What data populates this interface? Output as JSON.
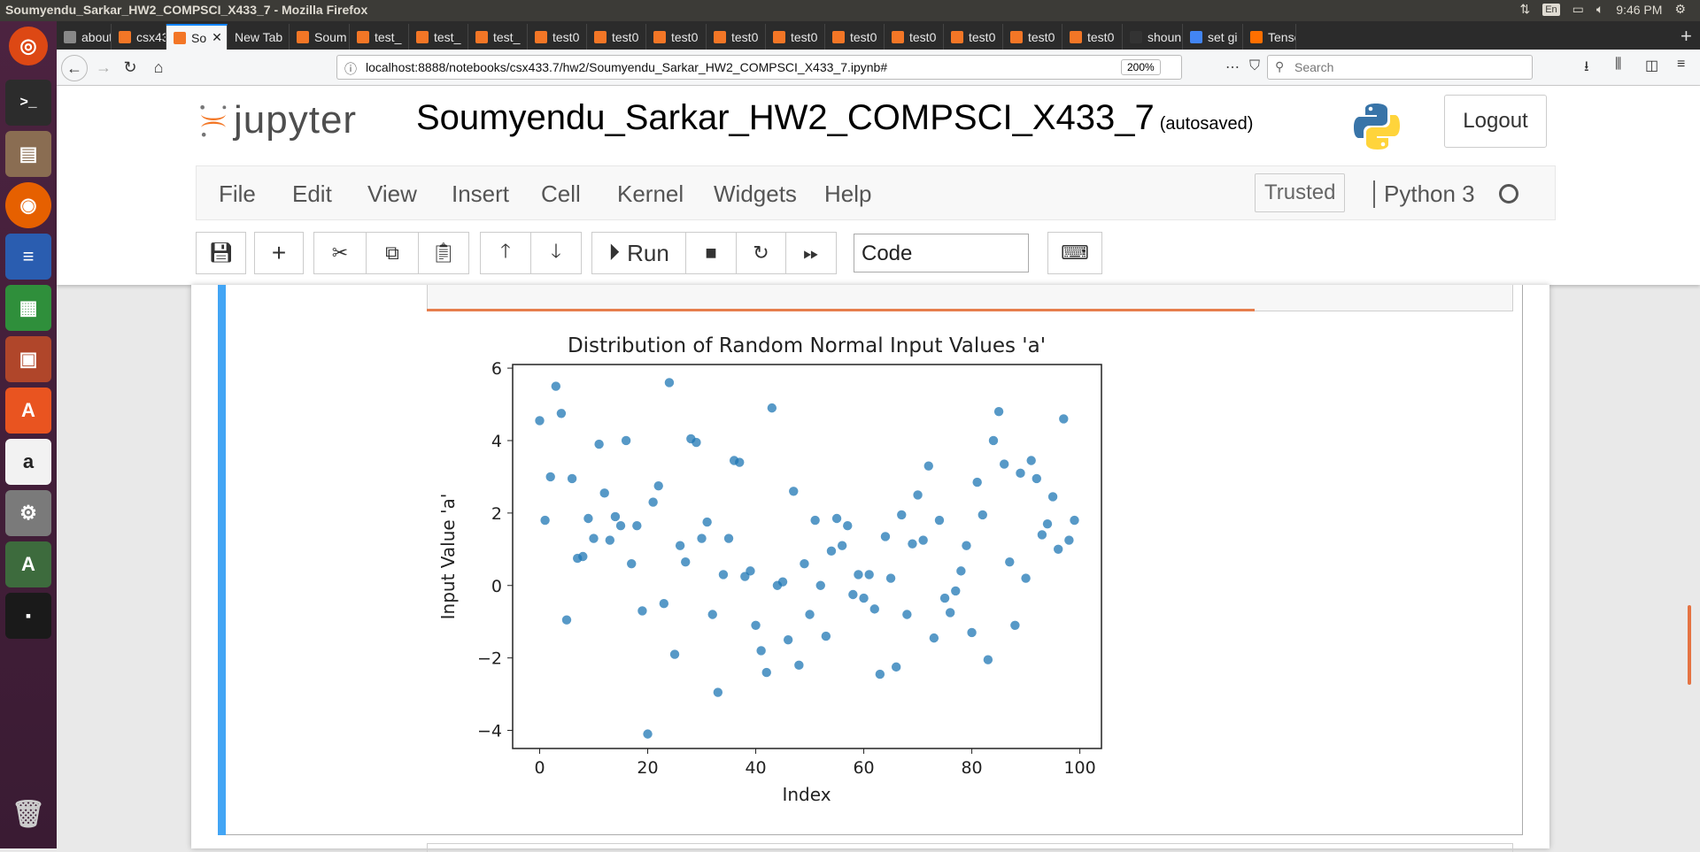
{
  "system": {
    "window_title": "Soumyendu_Sarkar_HW2_COMPSCI_X433_7 - Mozilla Firefox",
    "keyboard_layout": "En",
    "clock": "9:46 PM"
  },
  "tabs": [
    {
      "label": "about:se",
      "color": "#888888"
    },
    {
      "label": "csx43",
      "color": "#f37626"
    },
    {
      "label": "So",
      "color": "#f37626"
    },
    {
      "label": "New Tab",
      "color": ""
    },
    {
      "label": "Soum",
      "color": "#f37626"
    },
    {
      "label": "test_",
      "color": "#f37626"
    },
    {
      "label": "test_",
      "color": "#f37626"
    },
    {
      "label": "test_",
      "color": "#f37626"
    },
    {
      "label": "test0",
      "color": "#f37626"
    },
    {
      "label": "test0",
      "color": "#f37626"
    },
    {
      "label": "test0",
      "color": "#f37626"
    },
    {
      "label": "test0",
      "color": "#f37626"
    },
    {
      "label": "test0",
      "color": "#f37626"
    },
    {
      "label": "test0",
      "color": "#f37626"
    },
    {
      "label": "test0",
      "color": "#f37626"
    },
    {
      "label": "test0",
      "color": "#f37626"
    },
    {
      "label": "test0",
      "color": "#f37626"
    },
    {
      "label": "test0",
      "color": "#f37626"
    },
    {
      "label": "shoun",
      "color": "#333333"
    },
    {
      "label": "set gi",
      "color": "#4285f4"
    },
    {
      "label": "Tenso",
      "color": "#ff6f00"
    }
  ],
  "browser": {
    "url": "localhost:8888/notebooks/csx433.7/hw2/Soumyendu_Sarkar_HW2_COMPSCI_X433_7.ipynb#",
    "zoom": "200%",
    "search_placeholder": "Search"
  },
  "jupyter": {
    "logo_text": "jupyter",
    "notebook_name": "Soumyendu_Sarkar_HW2_COMPSCI_X433_7",
    "autosave_status": "(autosaved)",
    "logout_label": "Logout",
    "menus": [
      "File",
      "Edit",
      "View",
      "Insert",
      "Cell",
      "Kernel",
      "Widgets",
      "Help"
    ],
    "trusted_label": "Trusted",
    "kernel_name": "Python 3",
    "run_label": "Run",
    "cell_type": "Code"
  },
  "chart_data": {
    "type": "scatter",
    "title": "Distribution of Random Normal Input Values 'a'",
    "xlabel": "Index",
    "ylabel": "Input Value 'a'",
    "xlim": [
      -5,
      104
    ],
    "ylim": [
      -4.5,
      6.1
    ],
    "xticks": [
      0,
      20,
      40,
      60,
      80,
      100
    ],
    "yticks": [
      -4,
      -2,
      0,
      2,
      4,
      6
    ],
    "grid": false,
    "color": "#1f77b4",
    "x": [
      0,
      1,
      2,
      3,
      4,
      5,
      6,
      7,
      8,
      9,
      10,
      11,
      12,
      13,
      14,
      15,
      16,
      17,
      18,
      19,
      20,
      21,
      22,
      23,
      24,
      25,
      26,
      27,
      28,
      29,
      30,
      31,
      32,
      33,
      34,
      35,
      36,
      37,
      38,
      39,
      40,
      41,
      42,
      43,
      44,
      45,
      46,
      47,
      48,
      49,
      50,
      51,
      52,
      53,
      54,
      55,
      56,
      57,
      58,
      59,
      60,
      61,
      62,
      63,
      64,
      65,
      66,
      67,
      68,
      69,
      70,
      71,
      72,
      73,
      74,
      75,
      76,
      77,
      78,
      79,
      80,
      81,
      82,
      83,
      84,
      85,
      86,
      87,
      88,
      89,
      90,
      91,
      92,
      93,
      94,
      95,
      96,
      97,
      98,
      99
    ],
    "y": [
      4.55,
      1.8,
      3.0,
      5.5,
      4.75,
      -0.95,
      2.95,
      0.75,
      0.8,
      1.85,
      1.3,
      3.9,
      2.55,
      1.25,
      1.9,
      1.65,
      4.0,
      0.6,
      1.65,
      -0.7,
      -4.1,
      2.3,
      2.75,
      -0.5,
      5.6,
      -1.9,
      1.1,
      0.65,
      4.05,
      3.95,
      1.3,
      1.75,
      -0.8,
      -2.95,
      0.3,
      1.3,
      3.45,
      3.4,
      0.25,
      0.4,
      -1.1,
      -1.8,
      -2.4,
      4.9,
      0.0,
      0.1,
      -1.5,
      2.6,
      -2.2,
      0.6,
      -0.8,
      1.8,
      0.0,
      -1.4,
      0.95,
      1.85,
      1.1,
      1.65,
      -0.25,
      0.3,
      -0.35,
      0.3,
      -0.65,
      -2.45,
      1.35,
      0.2,
      -2.25,
      1.95,
      -0.8,
      1.15,
      2.5,
      1.25,
      3.3,
      -1.45,
      1.8,
      -0.35,
      -0.75,
      -0.15,
      0.4,
      1.1,
      -1.3,
      2.85,
      1.95,
      -2.05,
      4.0,
      4.8,
      3.35,
      0.65,
      -1.1,
      3.1,
      0.2,
      3.45,
      2.95,
      1.4,
      1.7,
      2.45,
      1.0,
      4.6,
      1.25,
      1.8
    ]
  }
}
